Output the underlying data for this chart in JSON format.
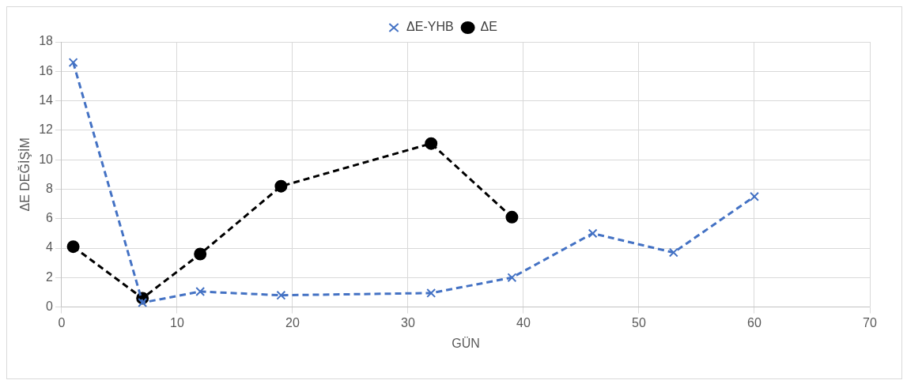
{
  "chart_data": {
    "type": "line",
    "xlabel": "GÜN",
    "ylabel": "ΔE DEĞİŞİM",
    "xlim": [
      0,
      70
    ],
    "xticks": [
      0,
      10,
      20,
      30,
      40,
      50,
      60,
      70
    ],
    "ylim": [
      0,
      18
    ],
    "yticks": [
      0,
      2,
      4,
      6,
      8,
      10,
      12,
      14,
      16,
      18
    ],
    "grid": true,
    "legend": "top",
    "line_style": "dashed",
    "series": [
      {
        "name": "ΔE-YHB",
        "color": "#4472c4",
        "marker": "cross",
        "x": [
          1,
          7,
          12,
          19,
          32,
          39,
          46,
          53,
          60
        ],
        "values": [
          16.6,
          0.3,
          1.05,
          0.8,
          0.95,
          2.0,
          5.0,
          3.7,
          7.5
        ]
      },
      {
        "name": "ΔE",
        "color": "#000000",
        "marker": "circle",
        "x": [
          1,
          7,
          12,
          19,
          32,
          39
        ],
        "values": [
          4.1,
          0.6,
          3.6,
          8.2,
          11.1,
          6.1
        ]
      }
    ]
  }
}
